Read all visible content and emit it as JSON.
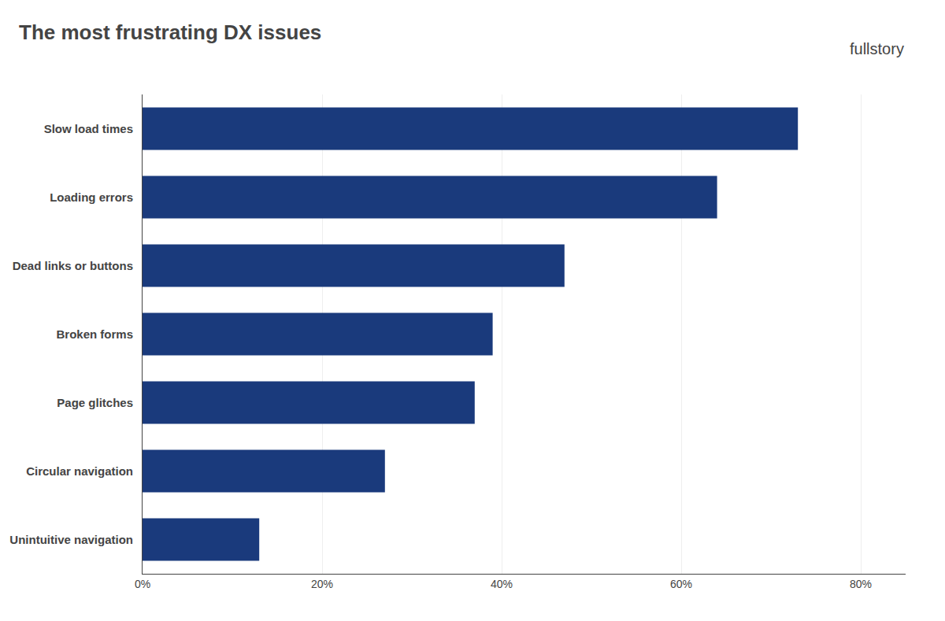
{
  "chart_data": {
    "type": "bar",
    "orientation": "horizontal",
    "title": "The most frustrating DX issues",
    "annotations": [
      "fullstory"
    ],
    "categories": [
      "Slow load times",
      "Loading errors",
      "Dead links or buttons",
      "Broken forms",
      "Page glitches",
      "Circular navigation",
      "Unintuitive navigation"
    ],
    "values": [
      73,
      64,
      47,
      39,
      37,
      27,
      13
    ],
    "color": "#1a3a7c",
    "xlim": [
      0,
      85
    ],
    "xticks": [
      {
        "value": 0,
        "label": "0%"
      },
      {
        "value": 20,
        "label": "20%"
      },
      {
        "value": 40,
        "label": "40%"
      },
      {
        "value": 60,
        "label": "60%"
      },
      {
        "value": 80,
        "label": "80%"
      }
    ],
    "grid": true
  }
}
